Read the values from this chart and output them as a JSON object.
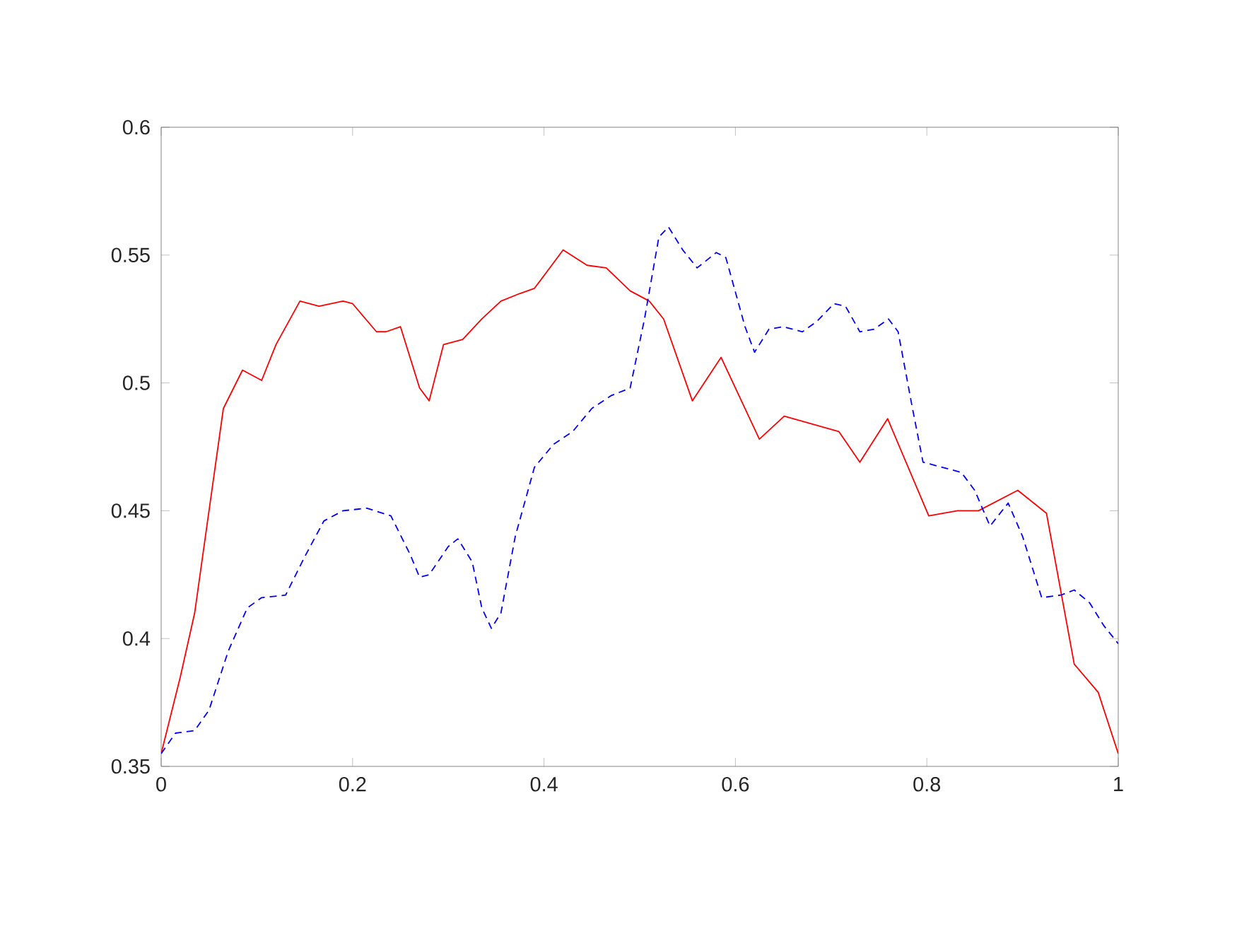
{
  "chart_data": {
    "type": "line",
    "xlim": [
      0,
      1
    ],
    "ylim": [
      0.35,
      0.6
    ],
    "xticks": [
      0,
      0.2,
      0.4,
      0.6,
      0.8,
      1
    ],
    "yticks": [
      0.35,
      0.4,
      0.45,
      0.5,
      0.55,
      0.6
    ],
    "series": [
      {
        "color": "#ff0000",
        "line_style": "solid",
        "x": [
          0,
          0.02,
          0.035,
          0.05,
          0.065,
          0.085,
          0.105,
          0.12,
          0.145,
          0.165,
          0.19,
          0.2,
          0.225,
          0.235,
          0.25,
          0.27,
          0.28,
          0.295,
          0.315,
          0.335,
          0.355,
          0.375,
          0.39,
          0.42,
          0.445,
          0.465,
          0.49,
          0.51,
          0.525,
          0.555,
          0.585,
          0.625,
          0.651,
          0.708,
          0.73,
          0.759,
          0.802,
          0.832,
          0.854,
          0.895,
          0.925,
          0.954,
          0.979,
          1
        ],
        "values": [
          0.355,
          0.385,
          0.41,
          0.45,
          0.49,
          0.505,
          0.501,
          0.515,
          0.532,
          0.53,
          0.532,
          0.531,
          0.52,
          0.52,
          0.522,
          0.498,
          0.493,
          0.515,
          0.517,
          0.525,
          0.532,
          0.535,
          0.537,
          0.552,
          0.546,
          0.545,
          0.536,
          0.532,
          0.525,
          0.493,
          0.51,
          0.478,
          0.487,
          0.481,
          0.469,
          0.486,
          0.448,
          0.45,
          0.45,
          0.458,
          0.449,
          0.39,
          0.379,
          0.355
        ]
      },
      {
        "color": "#0000ff",
        "line_style": "dashed",
        "x": [
          0,
          0.015,
          0.035,
          0.05,
          0.07,
          0.09,
          0.105,
          0.13,
          0.15,
          0.17,
          0.19,
          0.215,
          0.24,
          0.26,
          0.27,
          0.28,
          0.3,
          0.31,
          0.325,
          0.335,
          0.345,
          0.355,
          0.37,
          0.39,
          0.41,
          0.43,
          0.45,
          0.47,
          0.49,
          0.505,
          0.52,
          0.53,
          0.545,
          0.56,
          0.58,
          0.59,
          0.61,
          0.62,
          0.635,
          0.65,
          0.67,
          0.685,
          0.703,
          0.715,
          0.73,
          0.745,
          0.76,
          0.77,
          0.785,
          0.796,
          0.836,
          0.85,
          0.866,
          0.885,
          0.9,
          0.92,
          0.94,
          0.954,
          0.97,
          0.985,
          1
        ],
        "values": [
          0.355,
          0.363,
          0.364,
          0.372,
          0.395,
          0.412,
          0.416,
          0.417,
          0.432,
          0.446,
          0.45,
          0.451,
          0.448,
          0.433,
          0.424,
          0.425,
          0.436,
          0.439,
          0.43,
          0.412,
          0.404,
          0.41,
          0.44,
          0.467,
          0.476,
          0.481,
          0.49,
          0.495,
          0.498,
          0.525,
          0.557,
          0.561,
          0.552,
          0.545,
          0.551,
          0.549,
          0.522,
          0.512,
          0.521,
          0.522,
          0.52,
          0.524,
          0.531,
          0.53,
          0.52,
          0.521,
          0.525,
          0.52,
          0.49,
          0.469,
          0.465,
          0.458,
          0.444,
          0.453,
          0.44,
          0.416,
          0.417,
          0.419,
          0.414,
          0.405,
          0.398
        ]
      }
    ]
  }
}
